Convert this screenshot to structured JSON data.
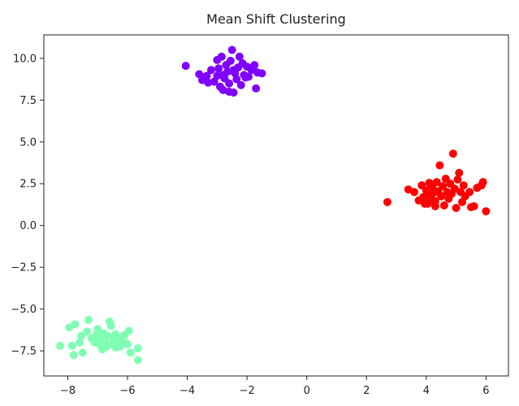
{
  "chart_data": {
    "type": "scatter",
    "title": "Mean Shift Clustering",
    "xlabel": "",
    "ylabel": "",
    "xlim": [
      -8.8,
      6.75
    ],
    "ylim": [
      -9.0,
      11.4
    ],
    "x_ticks": [
      -8,
      -6,
      -4,
      -2,
      0,
      2,
      4,
      6
    ],
    "y_ticks": [
      -7.5,
      -5.0,
      -2.5,
      0.0,
      2.5,
      5.0,
      7.5,
      10.0
    ],
    "y_tick_labels": [
      "−7.5",
      "−5.0",
      "−2.5",
      "0.0",
      "2.5",
      "5.0",
      "7.5",
      "10.0"
    ],
    "x_tick_labels": [
      "−8",
      "−6",
      "−4",
      "−2",
      "0",
      "2",
      "4",
      "6"
    ],
    "grid": false,
    "legend": "none",
    "series": [
      {
        "color": "#8000ff",
        "points": [
          [
            -4.05,
            9.55
          ],
          [
            -3.6,
            9.05
          ],
          [
            -3.5,
            8.7
          ],
          [
            -3.35,
            8.95
          ],
          [
            -3.2,
            9.3
          ],
          [
            -3.1,
            8.6
          ],
          [
            -3.0,
            9.9
          ],
          [
            -2.95,
            9.4
          ],
          [
            -2.9,
            8.3
          ],
          [
            -2.85,
            10.1
          ],
          [
            -2.8,
            9.0
          ],
          [
            -2.75,
            8.8
          ],
          [
            -2.7,
            9.6
          ],
          [
            -2.65,
            9.2
          ],
          [
            -2.6,
            8.5
          ],
          [
            -2.55,
            9.85
          ],
          [
            -2.5,
            10.5
          ],
          [
            -2.45,
            7.95
          ],
          [
            -2.4,
            9.1
          ],
          [
            -2.35,
            8.75
          ],
          [
            -2.3,
            9.45
          ],
          [
            -2.25,
            10.1
          ],
          [
            -2.2,
            8.4
          ],
          [
            -2.15,
            9.7
          ],
          [
            -2.1,
            9.0
          ],
          [
            -2.05,
            8.85
          ],
          [
            -2.0,
            9.5
          ],
          [
            -1.95,
            8.9
          ],
          [
            -1.85,
            9.3
          ],
          [
            -1.75,
            9.6
          ],
          [
            -1.7,
            8.2
          ],
          [
            -1.65,
            9.15
          ],
          [
            -1.5,
            9.1
          ],
          [
            -2.6,
            8.0
          ],
          [
            -3.0,
            8.95
          ],
          [
            -2.8,
            8.1
          ],
          [
            -3.3,
            8.55
          ],
          [
            -2.45,
            9.3
          ]
        ]
      },
      {
        "color": "#80ffb4",
        "points": [
          [
            -8.25,
            -7.2
          ],
          [
            -7.95,
            -6.1
          ],
          [
            -7.85,
            -7.2
          ],
          [
            -7.8,
            -7.75
          ],
          [
            -7.75,
            -5.9
          ],
          [
            -7.6,
            -7.0
          ],
          [
            -7.55,
            -6.6
          ],
          [
            -7.5,
            -7.6
          ],
          [
            -7.35,
            -6.35
          ],
          [
            -7.3,
            -5.65
          ],
          [
            -7.2,
            -6.75
          ],
          [
            -7.1,
            -7.0
          ],
          [
            -7.05,
            -6.55
          ],
          [
            -7.0,
            -6.2
          ],
          [
            -6.95,
            -7.1
          ],
          [
            -6.9,
            -6.8
          ],
          [
            -6.85,
            -7.4
          ],
          [
            -6.8,
            -6.45
          ],
          [
            -6.75,
            -6.95
          ],
          [
            -6.7,
            -7.25
          ],
          [
            -6.65,
            -6.6
          ],
          [
            -6.6,
            -5.75
          ],
          [
            -6.55,
            -6.0
          ],
          [
            -6.5,
            -7.1
          ],
          [
            -6.45,
            -6.8
          ],
          [
            -6.4,
            -6.5
          ],
          [
            -6.35,
            -7.0
          ],
          [
            -6.3,
            -6.7
          ],
          [
            -6.25,
            -7.25
          ],
          [
            -6.2,
            -6.9
          ],
          [
            -6.1,
            -6.55
          ],
          [
            -6.05,
            -7.05
          ],
          [
            -6.0,
            -7.1
          ],
          [
            -5.95,
            -6.3
          ],
          [
            -5.9,
            -7.6
          ],
          [
            -5.65,
            -7.35
          ],
          [
            -5.65,
            -8.05
          ],
          [
            -6.4,
            -7.3
          ]
        ]
      },
      {
        "color": "#ff0000",
        "points": [
          [
            2.7,
            1.4
          ],
          [
            3.4,
            2.15
          ],
          [
            3.6,
            2.0
          ],
          [
            3.75,
            1.5
          ],
          [
            3.85,
            2.4
          ],
          [
            3.9,
            1.7
          ],
          [
            3.95,
            1.3
          ],
          [
            4.0,
            2.1
          ],
          [
            4.05,
            1.85
          ],
          [
            4.1,
            2.55
          ],
          [
            4.15,
            1.6
          ],
          [
            4.2,
            2.3
          ],
          [
            4.25,
            1.95
          ],
          [
            4.3,
            1.45
          ],
          [
            4.35,
            2.6
          ],
          [
            4.4,
            2.05
          ],
          [
            4.45,
            3.6
          ],
          [
            4.5,
            1.75
          ],
          [
            4.55,
            2.35
          ],
          [
            4.6,
            1.2
          ],
          [
            4.65,
            2.8
          ],
          [
            4.7,
            2.0
          ],
          [
            4.75,
            1.6
          ],
          [
            4.8,
            2.5
          ],
          [
            4.85,
            1.9
          ],
          [
            4.9,
            4.3
          ],
          [
            4.95,
            2.2
          ],
          [
            5.0,
            1.05
          ],
          [
            5.05,
            2.75
          ],
          [
            5.1,
            3.15
          ],
          [
            5.15,
            2.0
          ],
          [
            5.2,
            1.4
          ],
          [
            5.25,
            2.4
          ],
          [
            5.3,
            1.75
          ],
          [
            5.45,
            2.0
          ],
          [
            5.5,
            1.1
          ],
          [
            5.6,
            1.15
          ],
          [
            5.7,
            2.25
          ],
          [
            5.85,
            2.4
          ],
          [
            5.9,
            2.6
          ],
          [
            6.0,
            0.85
          ],
          [
            4.3,
            1.15
          ],
          [
            4.05,
            1.3
          ]
        ]
      }
    ]
  }
}
